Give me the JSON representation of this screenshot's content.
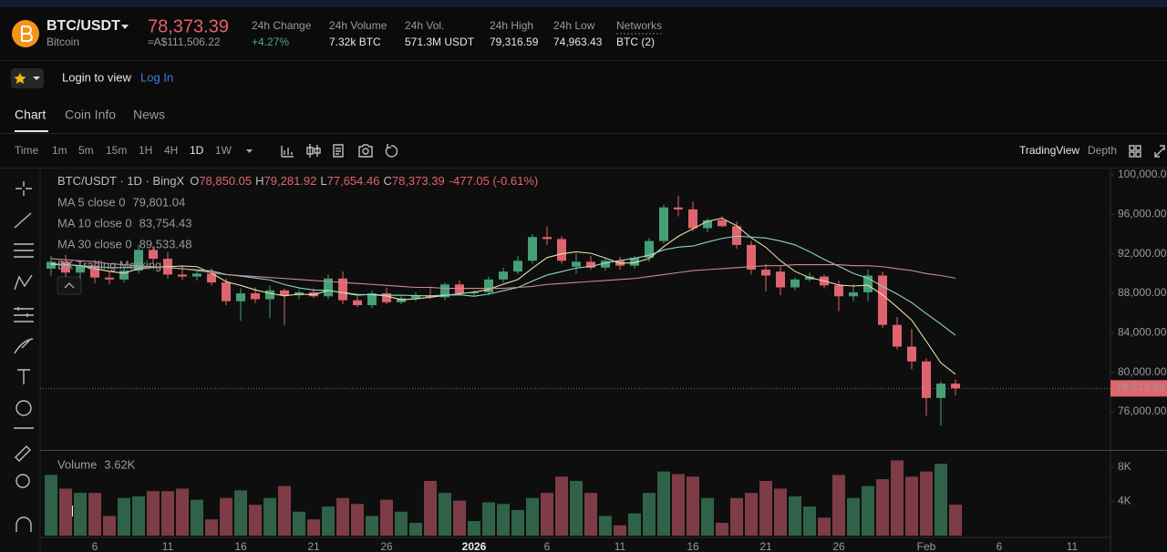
{
  "header": {
    "symbol": "BTC/USDT",
    "name": "Bitcoin",
    "price": "78,373.39",
    "fiat": "≈A$111,506.22",
    "stats": [
      {
        "label": "24h Change",
        "value": "+4.27%"
      },
      {
        "label": "24h Volume",
        "value": "7.32k BTC"
      },
      {
        "label": "24h Vol.",
        "value": "571.3M USDT"
      },
      {
        "label": "24h High",
        "value": "79,316.59"
      },
      {
        "label": "24h Low",
        "value": "74,963.43"
      },
      {
        "label": "Networks",
        "value": "BTC (2)"
      }
    ]
  },
  "bar": {
    "login": "Login to view",
    "login_link": "Log In"
  },
  "tabs": [
    "Chart",
    "Coin Info",
    "News"
  ],
  "intervals": [
    "Time",
    "1m",
    "5m",
    "15m",
    "1H",
    "4H",
    "1D",
    "1W"
  ],
  "views": [
    "TradingView",
    "Depth"
  ],
  "chart_data": {
    "type": "candlestick",
    "title": "BTC/USDT · 1D · BingX",
    "legend": {
      "o_label": "O",
      "o": "78,850.05",
      "h_label": "H",
      "h": "79,281.92",
      "l_label": "L",
      "l": "77,654.46",
      "c_label": "C",
      "c": "78,373.39",
      "change": "-477.05 (-0.61%)"
    },
    "ma_legend": [
      {
        "label": "MA 5 close 0",
        "value": "79,801.04"
      },
      {
        "label": "MA 10 close 0",
        "value": "83,754.43"
      },
      {
        "label": "MA 30 close 0",
        "value": "89,533.48"
      }
    ],
    "marking": "BX Trading Marking",
    "price_tag": "78,373.39",
    "volume_legend": {
      "label": "Volume",
      "value": "3.62K"
    },
    "up_color": "#45a077",
    "down_color": "#e0646f",
    "volume_up_color": "#2f6248",
    "volume_down_color": "#7d3c46",
    "categories": [
      null,
      null,
      null,
      "6",
      null,
      null,
      null,
      null,
      "11",
      null,
      null,
      null,
      null,
      "16",
      null,
      null,
      null,
      null,
      "21",
      null,
      null,
      null,
      null,
      "26",
      null,
      null,
      null,
      null,
      null,
      "2026",
      null,
      null,
      null,
      null,
      "6",
      null,
      null,
      null,
      null,
      "11",
      null,
      null,
      null,
      null,
      "16",
      null,
      null,
      null,
      null,
      "21",
      null,
      null,
      null,
      null,
      "26",
      null,
      null,
      null,
      null,
      null,
      "Feb",
      null,
      null,
      null,
      null,
      "6",
      null,
      null,
      null,
      null,
      "11"
    ],
    "open": [
      90500,
      91200,
      90100,
      90800,
      89600,
      89400,
      90300,
      92400,
      91500,
      89900,
      89700,
      90000,
      89100,
      87200,
      88000,
      87400,
      88300,
      87800,
      88100,
      87700,
      89500,
      87300,
      86800,
      88000,
      87100,
      87500,
      87800,
      87600,
      88900,
      88000,
      88100,
      89400,
      90200,
      91300,
      93700,
      93500,
      90700,
      91200,
      90600,
      91300,
      90800,
      91600,
      93300,
      96700,
      96500,
      94600,
      95400,
      94800,
      92900,
      90400,
      90200,
      88600,
      89400,
      89700,
      88800,
      87700,
      88100,
      89800,
      84800,
      82600,
      81100,
      77400,
      78850.05,
      null,
      null,
      null,
      null,
      null,
      null,
      null,
      null
    ],
    "high": [
      91800,
      91900,
      91300,
      91400,
      90200,
      90600,
      92900,
      92800,
      92200,
      90800,
      90200,
      90500,
      89500,
      88500,
      88600,
      88800,
      88500,
      88400,
      88500,
      89900,
      90200,
      87700,
      88300,
      88600,
      87700,
      88100,
      88700,
      89100,
      89300,
      88300,
      89700,
      90600,
      91800,
      94000,
      94800,
      93800,
      92000,
      91800,
      91500,
      91700,
      91800,
      93600,
      97000,
      97900,
      97300,
      95600,
      95800,
      95300,
      93300,
      91000,
      90700,
      89600,
      90100,
      89900,
      89300,
      88900,
      90400,
      90200,
      85600,
      84400,
      81400,
      79100,
      79281.92,
      null,
      null,
      null,
      null,
      null,
      null,
      null,
      null
    ],
    "low": [
      89800,
      89700,
      89500,
      89000,
      88900,
      89100,
      90000,
      91000,
      89500,
      89400,
      89300,
      88800,
      86800,
      85200,
      87000,
      85500,
      84800,
      87400,
      87500,
      87400,
      86900,
      86600,
      86500,
      86900,
      86900,
      87200,
      87400,
      87300,
      87800,
      87700,
      87800,
      89100,
      89900,
      91000,
      92900,
      91000,
      90000,
      90400,
      90300,
      90400,
      90500,
      91200,
      93000,
      95800,
      94300,
      94200,
      94700,
      92500,
      89900,
      88200,
      87800,
      88300,
      89200,
      88500,
      86200,
      87200,
      87200,
      84500,
      82300,
      80300,
      75600,
      74600,
      77654.46,
      null,
      null,
      null,
      null,
      null,
      null,
      null,
      null
    ],
    "close": [
      91200,
      90100,
      90800,
      89600,
      89400,
      90300,
      92400,
      91500,
      89900,
      89700,
      90000,
      89100,
      87200,
      88000,
      87400,
      88300,
      87800,
      88100,
      87700,
      89500,
      87300,
      86800,
      88000,
      87100,
      87500,
      87800,
      87600,
      88900,
      88000,
      88100,
      89400,
      90200,
      91300,
      93700,
      93500,
      91300,
      91200,
      90600,
      91300,
      90800,
      91600,
      93300,
      96700,
      96500,
      94600,
      95400,
      94800,
      92900,
      90400,
      89800,
      88600,
      89400,
      89700,
      88800,
      87700,
      88100,
      89800,
      84800,
      82600,
      81100,
      77400,
      78850,
      78373.39,
      null,
      null,
      null,
      null,
      null,
      null,
      null,
      null
    ],
    "volume": [
      7100,
      5500,
      5000,
      5000,
      2300,
      4400,
      4600,
      5200,
      5200,
      5500,
      4200,
      1900,
      4400,
      5300,
      3600,
      4400,
      5800,
      2800,
      1900,
      3400,
      4400,
      3700,
      2300,
      4200,
      2800,
      1500,
      6400,
      5000,
      4100,
      1700,
      3900,
      3700,
      3000,
      4400,
      5000,
      6900,
      6400,
      5000,
      2300,
      1200,
      2600,
      5000,
      7500,
      7200,
      6900,
      4400,
      1500,
      4400,
      5000,
      6400,
      5500,
      4600,
      3400,
      2100,
      7100,
      4400,
      5800,
      6600,
      8800,
      6900,
      7500,
      8400,
      3620,
      null,
      null,
      null,
      null,
      null,
      null,
      null,
      null
    ],
    "ma": [
      {
        "name": "MA 5",
        "color": "#e6dfa6",
        "values": [
          91000,
          90900,
          90800,
          90500,
          90220,
          90040,
          90500,
          90640,
          90700,
          90760,
          90700,
          90040,
          89180,
          88800,
          88340,
          88000,
          87740,
          87920,
          87860,
          88280,
          88080,
          87880,
          87860,
          87740,
          87340,
          87440,
          87600,
          87780,
          87960,
          88120,
          88400,
          88920,
          89400,
          90540,
          91620,
          92000,
          92200,
          92060,
          91580,
          91040,
          91100,
          91520,
          92740,
          93780,
          94540,
          95300,
          95600,
          94840,
          93620,
          92660,
          91300,
          90220,
          89580,
          89260,
          88840,
          88740,
          88820,
          87840,
          86600,
          85280,
          83140,
          80950,
          79801.04,
          null,
          null,
          null,
          null,
          null,
          null,
          null,
          null
        ]
      },
      {
        "name": "MA 10",
        "color": "#8fd6c6",
        "values": [
          90900,
          90900,
          90800,
          90700,
          90600,
          90600,
          90700,
          90700,
          90600,
          90490,
          90370,
          90270,
          89910,
          89750,
          89550,
          89350,
          88890,
          88550,
          88330,
          88310,
          88040,
          87810,
          87890,
          87800,
          87810,
          87760,
          87740,
          87820,
          87850,
          87710,
          87920,
          88260,
          88590,
          89250,
          89850,
          90200,
          90560,
          90730,
          91060,
          91330,
          91550,
          91860,
          92400,
          92680,
          92790,
          93200,
          93560,
          93790,
          93700,
          93600,
          93300,
          92910,
          92210,
          91440,
          90750,
          90020,
          89520,
          88710,
          87930,
          87060,
          85940,
          84885,
          83754.43,
          null,
          null,
          null,
          null,
          null,
          null,
          null,
          null
        ]
      },
      {
        "name": "MA 30",
        "color": "#c98b98",
        "values": [
          91500,
          91400,
          91300,
          91200,
          91000,
          90900,
          90800,
          90700,
          90600,
          90500,
          90300,
          90100,
          89900,
          89800,
          89700,
          89600,
          89500,
          89400,
          89300,
          89200,
          89100,
          89000,
          88900,
          88800,
          88700,
          88600,
          88600,
          88500,
          88500,
          88500,
          88500,
          88500,
          88600,
          88700,
          88900,
          89000,
          89100,
          89200,
          89300,
          89400,
          89500,
          89700,
          89900,
          90100,
          90300,
          90400,
          90500,
          90600,
          90700,
          90800,
          90800,
          90900,
          90900,
          90900,
          90900,
          90800,
          90800,
          90700,
          90500,
          90300,
          90000,
          89800,
          89533.48,
          null,
          null,
          null,
          null,
          null,
          null,
          null,
          null
        ]
      }
    ],
    "ylim": [
      72130,
      100550
    ],
    "yticks": [
      {
        "value": 100000,
        "label": "100,000.00"
      },
      {
        "value": 96000,
        "label": "96,000.00"
      },
      {
        "value": 92000,
        "label": "92,000.00"
      },
      {
        "value": 88000,
        "label": "88,000.00"
      },
      {
        "value": 84000,
        "label": "84,000.00"
      },
      {
        "value": 80000,
        "label": "80,000.00"
      },
      {
        "value": 76000,
        "label": "76,000.00"
      }
    ],
    "volume_ylim": [
      0,
      9700
    ],
    "volume_ticks": [
      {
        "value": 8000,
        "label": "8K"
      },
      {
        "value": 4000,
        "label": "4K"
      }
    ],
    "grid": false
  }
}
